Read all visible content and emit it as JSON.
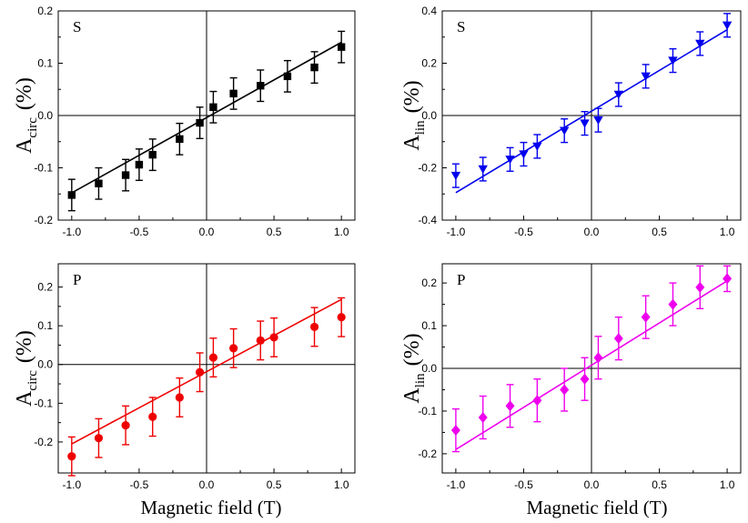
{
  "chart_data": [
    {
      "type": "scatter",
      "panel_label": "S",
      "ylabel_main": "A",
      "ylabel_sub": "circ",
      "ylabel_unit": "(%)",
      "xlabel": "",
      "xlim": [
        -1.1,
        1.1
      ],
      "ylim": [
        -0.2,
        0.2
      ],
      "xticks": [
        "-1.0",
        "-0.5",
        "0.0",
        "0.5",
        "1.0"
      ],
      "xtick_values": [
        -1.0,
        -0.5,
        0.0,
        0.5,
        1.0
      ],
      "yticks": [
        "-0.2",
        "-0.1",
        "0.0",
        "0.1",
        "0.2"
      ],
      "ytick_values": [
        -0.2,
        -0.1,
        0.0,
        0.1,
        0.2
      ],
      "marker": "square",
      "color": "#000000",
      "x": [
        -1.0,
        -0.8,
        -0.6,
        -0.5,
        -0.4,
        -0.2,
        -0.05,
        0.05,
        0.2,
        0.4,
        0.6,
        0.8,
        1.0
      ],
      "y": [
        -0.152,
        -0.13,
        -0.114,
        -0.094,
        -0.075,
        -0.045,
        -0.014,
        0.016,
        0.042,
        0.057,
        0.075,
        0.092,
        0.131
      ],
      "err": [
        0.03,
        0.03,
        0.03,
        0.03,
        0.03,
        0.03,
        0.03,
        0.03,
        0.03,
        0.03,
        0.03,
        0.03,
        0.03
      ],
      "fit": {
        "x": [
          -1.0,
          1.0
        ],
        "y": [
          -0.148,
          0.14
        ]
      }
    },
    {
      "type": "scatter",
      "panel_label": "S",
      "ylabel_main": "A",
      "ylabel_sub": "lin",
      "ylabel_unit": "(%)",
      "xlabel": "",
      "xlim": [
        -1.1,
        1.1
      ],
      "ylim": [
        -0.4,
        0.4
      ],
      "xticks": [
        "-1.0",
        "-0.5",
        "0.0",
        "0.5",
        "1.0"
      ],
      "xtick_values": [
        -1.0,
        -0.5,
        0.0,
        0.5,
        1.0
      ],
      "yticks": [
        "-0.4",
        "-0.2",
        "0.0",
        "0.2",
        "0.4"
      ],
      "ytick_values": [
        -0.4,
        -0.2,
        0.0,
        0.2,
        0.4
      ],
      "marker": "triangle-down",
      "color": "#0000ee",
      "x": [
        -1.0,
        -0.8,
        -0.6,
        -0.5,
        -0.4,
        -0.2,
        -0.05,
        0.05,
        0.2,
        0.4,
        0.6,
        0.8,
        1.0
      ],
      "y": [
        -0.23,
        -0.205,
        -0.168,
        -0.148,
        -0.118,
        -0.058,
        -0.03,
        -0.018,
        0.08,
        0.15,
        0.21,
        0.275,
        0.345
      ],
      "err": [
        0.045,
        0.045,
        0.045,
        0.045,
        0.045,
        0.045,
        0.045,
        0.045,
        0.045,
        0.045,
        0.045,
        0.045,
        0.045
      ],
      "fit": {
        "x": [
          -1.0,
          1.0
        ],
        "y": [
          -0.295,
          0.328
        ]
      }
    },
    {
      "type": "scatter",
      "panel_label": "P",
      "ylabel_main": "A",
      "ylabel_sub": "circ",
      "ylabel_unit": "(%)",
      "xlabel": "Magnetic field (T)",
      "xlim": [
        -1.1,
        1.1
      ],
      "ylim": [
        -0.28,
        0.26
      ],
      "xticks": [
        "-1.0",
        "-0.5",
        "0.0",
        "0.5",
        "1.0"
      ],
      "xtick_values": [
        -1.0,
        -0.5,
        0.0,
        0.5,
        1.0
      ],
      "yticks": [
        "-0.2",
        "-0.1",
        "0.0",
        "0.1",
        "0.2"
      ],
      "ytick_values": [
        -0.2,
        -0.1,
        0.0,
        0.1,
        0.2
      ],
      "marker": "circle",
      "color": "#ee0000",
      "x": [
        -1.0,
        -0.8,
        -0.6,
        -0.4,
        -0.2,
        -0.05,
        0.05,
        0.2,
        0.4,
        0.5,
        0.8,
        1.0
      ],
      "y": [
        -0.237,
        -0.19,
        -0.157,
        -0.135,
        -0.085,
        -0.02,
        0.018,
        0.042,
        0.062,
        0.07,
        0.097,
        0.122
      ],
      "err": [
        0.05,
        0.05,
        0.05,
        0.05,
        0.05,
        0.05,
        0.05,
        0.05,
        0.05,
        0.05,
        0.05,
        0.05
      ],
      "fit": {
        "x": [
          -1.0,
          1.0
        ],
        "y": [
          -0.205,
          0.168
        ]
      }
    },
    {
      "type": "scatter",
      "panel_label": "P",
      "ylabel_main": "A",
      "ylabel_sub": "lin",
      "ylabel_unit": "(%)",
      "xlabel": "Magnetic field (T)",
      "xlim": [
        -1.1,
        1.1
      ],
      "ylim": [
        -0.245,
        0.245
      ],
      "xticks": [
        "-1.0",
        "-0.5",
        "0.0",
        "0.5",
        "1.0"
      ],
      "xtick_values": [
        -1.0,
        -0.5,
        0.0,
        0.5,
        1.0
      ],
      "yticks": [
        "-0.2",
        "-0.1",
        "0.0",
        "0.1",
        "0.2"
      ],
      "ytick_values": [
        -0.2,
        -0.1,
        0.0,
        0.1,
        0.2
      ],
      "marker": "diamond",
      "color": "#ee00ee",
      "x": [
        -1.0,
        -0.8,
        -0.6,
        -0.4,
        -0.2,
        -0.05,
        0.05,
        0.2,
        0.4,
        0.6,
        0.8,
        1.0
      ],
      "y": [
        -0.145,
        -0.115,
        -0.088,
        -0.075,
        -0.05,
        -0.025,
        0.025,
        0.07,
        0.12,
        0.15,
        0.19,
        0.21
      ],
      "err": [
        0.05,
        0.05,
        0.05,
        0.05,
        0.05,
        0.05,
        0.05,
        0.05,
        0.05,
        0.05,
        0.05,
        0.03
      ],
      "fit": {
        "x": [
          -1.0,
          1.0
        ],
        "y": [
          -0.19,
          0.205
        ]
      }
    }
  ]
}
